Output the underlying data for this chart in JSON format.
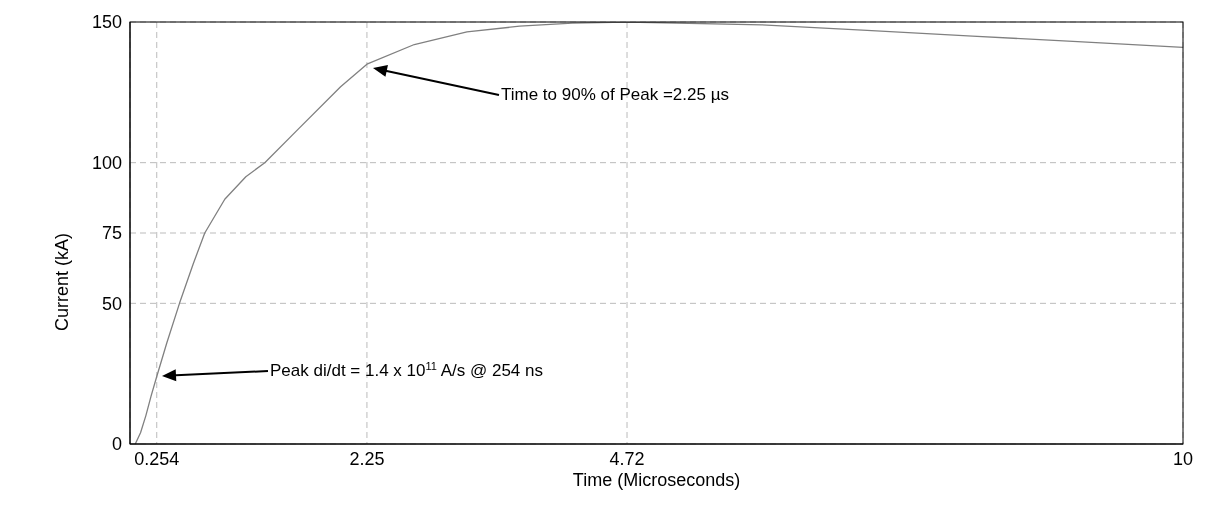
{
  "chart_data": {
    "type": "line",
    "xlabel": "Time (Microseconds)",
    "ylabel": "Current (kA)",
    "xlim": [
      0,
      10
    ],
    "xticks": [
      0.254,
      2.25,
      4.72,
      10
    ],
    "ylim": [
      0,
      150
    ],
    "yticks": [
      0,
      50,
      75,
      100,
      150
    ],
    "grid": true,
    "marker": "none",
    "line_style": "solid",
    "series": [
      {
        "color": "#808080",
        "x": [
          0.05,
          0.1,
          0.15,
          0.2,
          0.254,
          0.35,
          0.47,
          0.6,
          0.71,
          0.9,
          1.1,
          1.28,
          1.6,
          2.0,
          2.25,
          2.7,
          3.2,
          3.7,
          4.2,
          4.72,
          6,
          7,
          8,
          9,
          10
        ],
        "values": [
          0,
          4,
          10,
          17,
          24,
          36,
          50,
          64,
          75,
          87,
          95,
          100,
          112,
          127,
          135,
          142,
          146.5,
          148.5,
          149.6,
          150,
          149,
          147,
          145,
          143,
          141
        ]
      }
    ],
    "annotations": [
      "Time to 90% of Peak =2.25 µs",
      "Peak di/dt = 1.4 x 10$^{11}$ A/s @ 254 ns"
    ]
  }
}
